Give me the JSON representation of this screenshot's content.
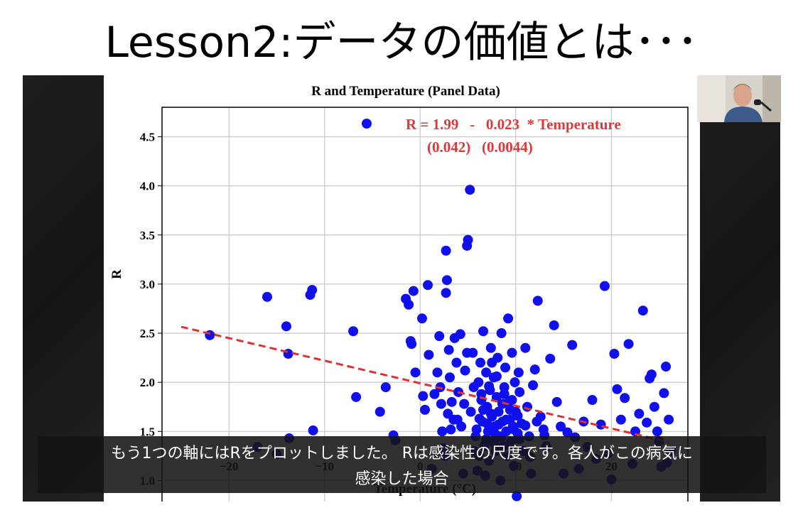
{
  "slide": {
    "title": "Lesson2:データの価値とは･･･"
  },
  "caption": {
    "line1": "もう1つの軸にはRをプロットしました。 Rは感染性の尺度です。各人がこの病気に",
    "line2": "感染した場合"
  },
  "colors": {
    "points": "#1010ee",
    "regression": "#e03030",
    "equation": "#d93a3a",
    "grid": "#c8c8c8"
  },
  "chart_data": {
    "type": "scatter",
    "title": "R and Temperature (Panel Data)",
    "xlabel": "Temperature (°C)",
    "ylabel": "R",
    "xlim": [
      -27,
      28
    ],
    "ylim": [
      0.75,
      4.8
    ],
    "x_ticks": [
      -20,
      -10,
      0,
      10,
      20
    ],
    "x_tick_labels": [
      "−20",
      "−10",
      "0",
      "10",
      "20"
    ],
    "y_ticks": [
      1.0,
      1.5,
      2.0,
      2.5,
      3.0,
      3.5,
      4.0,
      4.5
    ],
    "y_tick_labels": [
      "1.0",
      "1.5",
      "2.0",
      "2.5",
      "3.0",
      "3.5",
      "4.0",
      "4.5"
    ],
    "grid": true,
    "equation": {
      "line1": "R = 1.99   -   0.023  * Temperature",
      "line2": "(0.042)   (0.0044)"
    },
    "regression": {
      "intercept": 1.99,
      "slope": -0.023,
      "x_range": [
        -25,
        26
      ]
    },
    "points": [
      [
        -22,
        2.48
      ],
      [
        -17,
        1.34
      ],
      [
        -16,
        2.87
      ],
      [
        -15,
        1.27
      ],
      [
        -14,
        2.57
      ],
      [
        -13.8,
        2.29
      ],
      [
        -13.7,
        1.43
      ],
      [
        -11.5,
        2.89
      ],
      [
        -11.3,
        2.94
      ],
      [
        -11.2,
        1.51
      ],
      [
        -7,
        2.52
      ],
      [
        -6.7,
        1.85
      ],
      [
        -4.2,
        1.7
      ],
      [
        -3.6,
        1.95
      ],
      [
        -2.8,
        1.46
      ],
      [
        -2.6,
        1.41
      ],
      [
        -1.5,
        2.85
      ],
      [
        -1.2,
        2.79
      ],
      [
        -1.0,
        2.42
      ],
      [
        -0.9,
        2.39
      ],
      [
        -0.7,
        2.93
      ],
      [
        -0.5,
        2.1
      ],
      [
        0.2,
        2.65
      ],
      [
        0.3,
        1.86
      ],
      [
        0.5,
        1.72
      ],
      [
        0.8,
        2.99
      ],
      [
        1.2,
        1.12
      ],
      [
        1.8,
        2.1
      ],
      [
        2.0,
        2.47
      ],
      [
        2.1,
        1.95
      ],
      [
        2.2,
        1.78
      ],
      [
        2.3,
        1.5
      ],
      [
        2.4,
        1.33
      ],
      [
        2.5,
        1.27
      ],
      [
        2.6,
        1.25
      ],
      [
        2.7,
        2.91
      ],
      [
        2.8,
        3.04
      ],
      [
        2.7,
        3.34
      ],
      [
        3.0,
        2.33
      ],
      [
        3.1,
        2.05
      ],
      [
        3.3,
        1.8
      ],
      [
        3.5,
        1.62
      ],
      [
        3.6,
        2.45
      ],
      [
        3.8,
        2.2
      ],
      [
        4.0,
        1.9
      ],
      [
        4.2,
        2.49
      ],
      [
        4.3,
        1.55
      ],
      [
        4.5,
        1.07
      ],
      [
        4.7,
        2.12
      ],
      [
        4.9,
        3.39
      ],
      [
        5.0,
        3.45
      ],
      [
        5.2,
        3.96
      ],
      [
        5.3,
        1.7
      ],
      [
        5.5,
        2.3
      ],
      [
        5.6,
        1.95
      ],
      [
        5.8,
        1.45
      ],
      [
        6.0,
        1.1
      ],
      [
        6.1,
        2.0
      ],
      [
        6.2,
        1.25
      ],
      [
        6.3,
        2.2
      ],
      [
        6.4,
        1.82
      ],
      [
        6.5,
        1.6
      ],
      [
        6.6,
        2.52
      ],
      [
        6.7,
        1.35
      ],
      [
        6.8,
        1.05
      ],
      [
        6.9,
        2.1
      ],
      [
        7.0,
        1.75
      ],
      [
        7.1,
        1.5
      ],
      [
        7.2,
        1.2
      ],
      [
        7.3,
        1.92
      ],
      [
        7.4,
        2.35
      ],
      [
        7.5,
        1.65
      ],
      [
        7.6,
        1.4
      ],
      [
        7.7,
        2.05
      ],
      [
        7.8,
        1.55
      ],
      [
        7.9,
        1.3
      ],
      [
        8.0,
        1.85
      ],
      [
        8.1,
        2.25
      ],
      [
        8.2,
        1.7
      ],
      [
        8.3,
        1.45
      ],
      [
        8.4,
        1.0
      ],
      [
        8.5,
        2.5
      ],
      [
        8.6,
        1.6
      ],
      [
        8.7,
        1.35
      ],
      [
        8.8,
        1.95
      ],
      [
        8.9,
        2.15
      ],
      [
        9.0,
        1.5
      ],
      [
        9.1,
        1.25
      ],
      [
        9.2,
        2.65
      ],
      [
        9.3,
        1.8
      ],
      [
        9.4,
        1.62
      ],
      [
        9.5,
        1.4
      ],
      [
        9.6,
        2.3
      ],
      [
        9.7,
        1.55
      ],
      [
        9.8,
        1.15
      ],
      [
        9.9,
        2.0
      ],
      [
        10.0,
        1.7
      ],
      [
        10.1,
        0.84
      ],
      [
        10.2,
        1.48
      ],
      [
        10.3,
        2.1
      ],
      [
        10.4,
        1.9
      ],
      [
        10.6,
        1.58
      ],
      [
        10.8,
        1.3
      ],
      [
        11.0,
        2.35
      ],
      [
        11.2,
        1.75
      ],
      [
        11.4,
        1.45
      ],
      [
        11.6,
        1.07
      ],
      [
        11.8,
        1.97
      ],
      [
        12.0,
        2.13
      ],
      [
        12.3,
        2.83
      ],
      [
        12.6,
        1.65
      ],
      [
        12.9,
        1.52
      ],
      [
        13.2,
        1.35
      ],
      [
        13.6,
        2.24
      ],
      [
        14.0,
        2.58
      ],
      [
        14.3,
        1.8
      ],
      [
        14.7,
        1.55
      ],
      [
        15.0,
        1.07
      ],
      [
        15.4,
        1.49
      ],
      [
        15.9,
        2.38
      ],
      [
        16.2,
        1.44
      ],
      [
        16.6,
        1.12
      ],
      [
        17.1,
        1.6
      ],
      [
        17.5,
        1.34
      ],
      [
        18.0,
        1.82
      ],
      [
        18.4,
        1.22
      ],
      [
        18.9,
        1.57
      ],
      [
        19.3,
        2.98
      ],
      [
        19.7,
        1.28
      ],
      [
        20.0,
        1.01
      ],
      [
        20.3,
        2.29
      ],
      [
        20.6,
        1.93
      ],
      [
        21.0,
        1.62
      ],
      [
        21.4,
        1.84
      ],
      [
        21.8,
        2.39
      ],
      [
        22.2,
        1.17
      ],
      [
        22.5,
        1.5
      ],
      [
        22.9,
        1.68
      ],
      [
        23.3,
        2.73
      ],
      [
        23.7,
        1.59
      ],
      [
        24.0,
        2.04
      ],
      [
        24.2,
        2.08
      ],
      [
        24.5,
        1.75
      ],
      [
        24.8,
        1.5
      ],
      [
        25.0,
        1.4
      ],
      [
        25.2,
        1.14
      ],
      [
        25.5,
        1.89
      ],
      [
        25.7,
        2.16
      ],
      [
        26.0,
        1.62
      ],
      [
        26.2,
        1.3
      ],
      [
        25.8,
        1.18
      ],
      [
        6.2,
        1.63
      ],
      [
        6.6,
        1.72
      ],
      [
        7.0,
        1.58
      ],
      [
        7.4,
        1.68
      ],
      [
        7.8,
        1.48
      ],
      [
        8.2,
        1.57
      ],
      [
        8.6,
        1.78
      ],
      [
        9.0,
        1.62
      ],
      [
        9.4,
        1.72
      ],
      [
        9.8,
        1.52
      ],
      [
        10.2,
        1.66
      ],
      [
        6.9,
        1.42
      ],
      [
        7.7,
        1.38
      ],
      [
        8.5,
        1.44
      ],
      [
        9.3,
        1.36
      ],
      [
        5.9,
        1.52
      ],
      [
        6.4,
        1.88
      ],
      [
        7.2,
        1.96
      ],
      [
        8.0,
        2.06
      ],
      [
        8.8,
        1.88
      ],
      [
        9.6,
        1.82
      ],
      [
        10.4,
        1.42
      ],
      [
        5.6,
        1.3
      ],
      [
        4.6,
        1.78
      ],
      [
        3.9,
        1.62
      ],
      [
        3.2,
        1.52
      ],
      [
        11.0,
        1.56
      ],
      [
        11.5,
        1.24
      ],
      [
        12.2,
        1.6
      ],
      [
        13.0,
        1.46
      ],
      [
        1.5,
        1.88
      ],
      [
        0.9,
        2.28
      ],
      [
        2.9,
        1.68
      ],
      [
        4.9,
        2.3
      ],
      [
        7.5,
        2.2
      ]
    ]
  }
}
